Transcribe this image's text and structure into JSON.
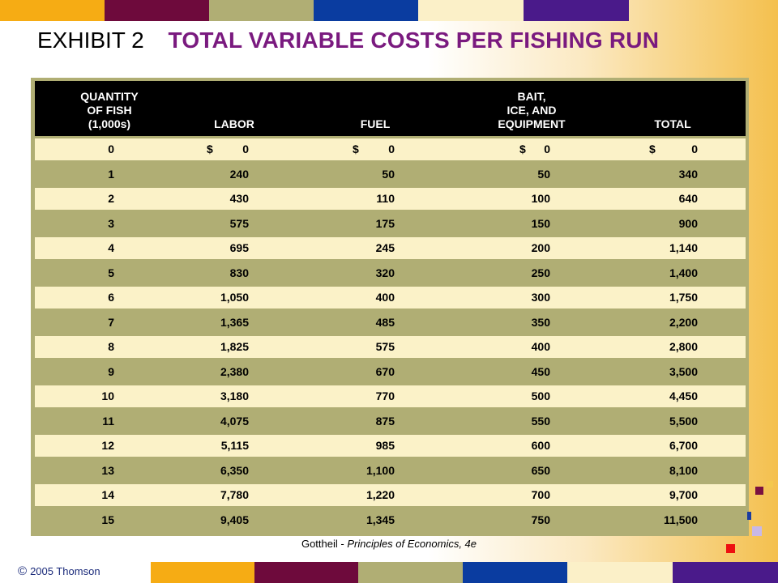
{
  "header_title": {
    "exhibit_label": "EXHIBIT 2",
    "main_title": "TOTAL VARIABLE COSTS PER FISHING RUN"
  },
  "table": {
    "columns": {
      "quantity": [
        "QUANTITY",
        "OF FISH",
        "(1,000s)"
      ],
      "labor": "LABOR",
      "fuel": "FUEL",
      "bait": [
        "BAIT,",
        "ICE, AND",
        "EQUIPMENT"
      ],
      "total": "TOTAL"
    },
    "currency_symbol": "$",
    "rows": [
      {
        "q": "0",
        "labor": "0",
        "fuel": "0",
        "bait": "0",
        "total": "0"
      },
      {
        "q": "1",
        "labor": "240",
        "fuel": "50",
        "bait": "50",
        "total": "340"
      },
      {
        "q": "2",
        "labor": "430",
        "fuel": "110",
        "bait": "100",
        "total": "640"
      },
      {
        "q": "3",
        "labor": "575",
        "fuel": "175",
        "bait": "150",
        "total": "900"
      },
      {
        "q": "4",
        "labor": "695",
        "fuel": "245",
        "bait": "200",
        "total": "1,140"
      },
      {
        "q": "5",
        "labor": "830",
        "fuel": "320",
        "bait": "250",
        "total": "1,400"
      },
      {
        "q": "6",
        "labor": "1,050",
        "fuel": "400",
        "bait": "300",
        "total": "1,750"
      },
      {
        "q": "7",
        "labor": "1,365",
        "fuel": "485",
        "bait": "350",
        "total": "2,200"
      },
      {
        "q": "8",
        "labor": "1,825",
        "fuel": "575",
        "bait": "400",
        "total": "2,800"
      },
      {
        "q": "9",
        "labor": "2,380",
        "fuel": "670",
        "bait": "450",
        "total": "3,500"
      },
      {
        "q": "10",
        "labor": "3,180",
        "fuel": "770",
        "bait": "500",
        "total": "4,450"
      },
      {
        "q": "11",
        "labor": "4,075",
        "fuel": "875",
        "bait": "550",
        "total": "5,500"
      },
      {
        "q": "12",
        "labor": "5,115",
        "fuel": "985",
        "bait": "600",
        "total": "6,700"
      },
      {
        "q": "13",
        "labor": "6,350",
        "fuel": "1,100",
        "bait": "650",
        "total": "8,100"
      },
      {
        "q": "14",
        "labor": "7,780",
        "fuel": "1,220",
        "bait": "700",
        "total": "9,700"
      },
      {
        "q": "15",
        "labor": "9,405",
        "fuel": "1,345",
        "bait": "750",
        "total": "11,500"
      }
    ]
  },
  "footer": {
    "author": "Gottheil - ",
    "book": "Principles of Economics, 4e",
    "copyright_symbol": "©",
    "copyright_text": "2005 Thomson"
  },
  "colors": {
    "bar": [
      "#f6ac14",
      "#6e0a3c",
      "#b0ae74",
      "#0a3ca0",
      "#fbf0c8",
      "#4a1a8a"
    ],
    "title_purple": "#7a1a7f",
    "row_light": "#fbf2c8",
    "row_dark": "#b0ae74"
  }
}
